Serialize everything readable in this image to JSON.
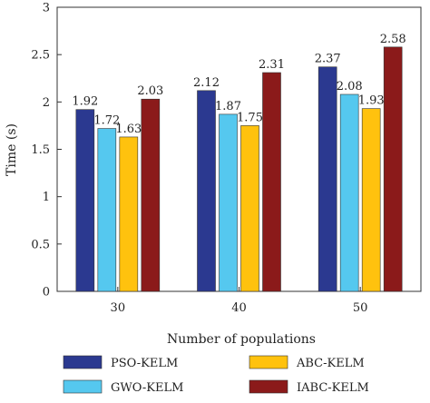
{
  "chart_data": {
    "type": "bar",
    "title": "",
    "xlabel": "Number of populations",
    "ylabel": "Time (s)",
    "categories": [
      "30",
      "40",
      "50"
    ],
    "ylim": [
      0,
      3
    ],
    "yticks": [
      "0",
      "0.5",
      "1",
      "1.5",
      "2",
      "2.5",
      "3"
    ],
    "grid": false,
    "legend_position": "bottom",
    "series": [
      {
        "name": "PSO-KELM",
        "values": [
          1.92,
          2.12,
          2.37
        ],
        "labels": [
          "1.92",
          "2.12",
          "2.37"
        ],
        "color": "#2b3990"
      },
      {
        "name": "GWO-KELM",
        "values": [
          1.72,
          1.87,
          2.08
        ],
        "labels": [
          "1.72",
          "1.87",
          "2.08"
        ],
        "color": "#55c8ef"
      },
      {
        "name": "ABC-KELM",
        "values": [
          1.63,
          1.75,
          1.93
        ],
        "labels": [
          "1.63",
          "1.75",
          "1.93"
        ],
        "color": "#ffc20e"
      },
      {
        "name": "IABC-KELM",
        "values": [
          2.03,
          2.31,
          2.58
        ],
        "labels": [
          "2.03",
          "2.31",
          "2.58"
        ],
        "color": "#8b1a1a"
      }
    ]
  }
}
